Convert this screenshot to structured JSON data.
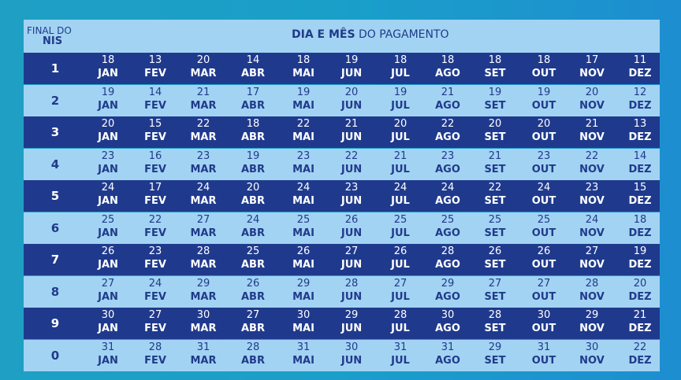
{
  "header": {
    "first_line1": "FINAL DO",
    "first_line2": "NIS",
    "title_bold": "DIA E MÊS",
    "title_rest": " DO PAGAMENTO"
  },
  "months": [
    "JAN",
    "FEV",
    "MAR",
    "ABR",
    "MAI",
    "JUN",
    "JUL",
    "AGO",
    "SET",
    "OUT",
    "NOV",
    "DEZ"
  ],
  "rows": [
    {
      "nis": "1",
      "days": [
        "18",
        "13",
        "20",
        "14",
        "18",
        "19",
        "18",
        "18",
        "18",
        "18",
        "17",
        "11"
      ]
    },
    {
      "nis": "2",
      "days": [
        "19",
        "14",
        "21",
        "17",
        "19",
        "20",
        "19",
        "21",
        "19",
        "19",
        "20",
        "12"
      ]
    },
    {
      "nis": "3",
      "days": [
        "20",
        "15",
        "22",
        "18",
        "22",
        "21",
        "20",
        "22",
        "20",
        "20",
        "21",
        "13"
      ]
    },
    {
      "nis": "4",
      "days": [
        "23",
        "16",
        "23",
        "19",
        "23",
        "22",
        "21",
        "23",
        "21",
        "23",
        "22",
        "14"
      ]
    },
    {
      "nis": "5",
      "days": [
        "24",
        "17",
        "24",
        "20",
        "24",
        "23",
        "24",
        "24",
        "22",
        "24",
        "23",
        "15"
      ]
    },
    {
      "nis": "6",
      "days": [
        "25",
        "22",
        "27",
        "24",
        "25",
        "26",
        "25",
        "25",
        "25",
        "25",
        "24",
        "18"
      ]
    },
    {
      "nis": "7",
      "days": [
        "26",
        "23",
        "28",
        "25",
        "26",
        "27",
        "26",
        "28",
        "26",
        "26",
        "27",
        "19"
      ]
    },
    {
      "nis": "8",
      "days": [
        "27",
        "24",
        "29",
        "26",
        "29",
        "28",
        "27",
        "29",
        "27",
        "27",
        "28",
        "20"
      ]
    },
    {
      "nis": "9",
      "days": [
        "30",
        "27",
        "30",
        "27",
        "30",
        "29",
        "28",
        "30",
        "28",
        "30",
        "29",
        "21"
      ]
    },
    {
      "nis": "0",
      "days": [
        "31",
        "28",
        "31",
        "28",
        "31",
        "30",
        "31",
        "31",
        "29",
        "31",
        "30",
        "22"
      ]
    }
  ],
  "colors": {
    "dark_row": "#1f3a8d",
    "light_row": "#a3d3f3",
    "dark_text": "#203b8a",
    "background": "#1a9fc9"
  }
}
